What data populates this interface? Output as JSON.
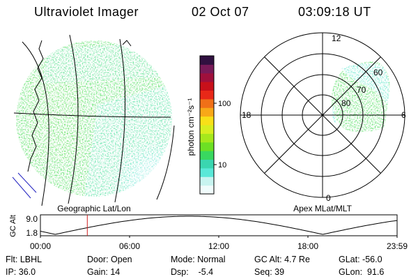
{
  "header": {
    "instrument": "Ultraviolet Imager",
    "date": "02 Oct 07",
    "time": "03:09:18 UT"
  },
  "left_panel": {
    "caption": "Geographic Lat/Lon"
  },
  "right_panel": {
    "caption": "Apex MLat/MLT",
    "mlt_labels": [
      "12",
      "18",
      "6",
      "0"
    ],
    "lat_labels": [
      "60",
      "70",
      "80"
    ]
  },
  "colorbar": {
    "label": "photon cm⁻²s⁻¹",
    "ticks": [
      "100",
      "10"
    ],
    "colors": [
      "#f0fcfc",
      "#c8f4f0",
      "#5ae8d8",
      "#3ad6b0",
      "#39d860",
      "#6de024",
      "#a6e81c",
      "#d8ee20",
      "#f8e018",
      "#f8a818",
      "#f07018",
      "#e82818",
      "#c8101a",
      "#a0103c",
      "#781a58",
      "#301040"
    ]
  },
  "alt_plot": {
    "ylabel": "GC Alt",
    "ymax_label": "9.0",
    "ymin_label": "1.8",
    "x_ticks": [
      "00:00",
      "06:00",
      "12:00",
      "18:00",
      "23:59"
    ],
    "marker_time_hours": 3.155
  },
  "info": {
    "row1": [
      "Flt: LBHL",
      "Door: Open",
      "Mode: Normal",
      "GC Alt: 4.7 Re",
      "GLat: -56.0"
    ],
    "row2": [
      "IP: 36.0",
      "Gain: 14",
      "Dsp:    -5.4",
      "Seq: 39",
      "GLon:  91.6"
    ]
  },
  "style": {
    "map_green": "#40dc50",
    "map_cyan": "#56e6d4",
    "grid_color": "#000000",
    "marker_color": "#d02020",
    "coast_blue": "#2020c0"
  }
}
